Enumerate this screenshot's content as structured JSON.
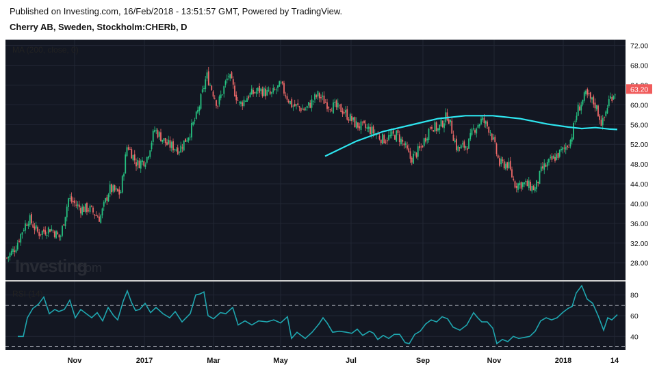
{
  "header": {
    "publish_line": "Published on Investing.com, 16/Feb/2018 - 13:51:57 GMT, Powered by TradingView.",
    "symbol_line": "Cherry AB, Sweden, Stockholm:CHERb, D"
  },
  "watermark": {
    "brand": "Investing",
    "suffix": ".com"
  },
  "colors": {
    "background": "#131722",
    "up_candle": "#26c281",
    "down_candle": "#f06a6a",
    "ma_line": "#2ee6f0",
    "rsi_line": "#1fa7b0",
    "last_price_badge": "#f05b5b"
  },
  "chart_data": {
    "type": "candlestick",
    "price_panel": {
      "indicator_label": "MA (200, close, 0)",
      "y_ticks": [
        "72.00",
        "68.00",
        "64.00",
        "60.00",
        "56.00",
        "52.00",
        "48.00",
        "44.00",
        "40.00",
        "36.00",
        "32.00",
        "28.00"
      ],
      "y_range": [
        24.5,
        73.2
      ],
      "last_price": "63.20",
      "last_price_value": 63.2,
      "candles_close_path": [
        [
          0,
          28
        ],
        [
          10,
          29
        ],
        [
          22,
          31
        ],
        [
          34,
          35
        ],
        [
          42,
          37
        ],
        [
          56,
          34
        ],
        [
          74,
          35
        ],
        [
          88,
          33
        ],
        [
          100,
          41
        ],
        [
          118,
          39
        ],
        [
          130,
          39
        ],
        [
          146,
          37
        ],
        [
          160,
          43
        ],
        [
          176,
          42
        ],
        [
          186,
          52
        ],
        [
          200,
          48
        ],
        [
          214,
          49
        ],
        [
          226,
          55
        ],
        [
          244,
          52
        ],
        [
          262,
          51
        ],
        [
          276,
          54
        ],
        [
          288,
          58
        ],
        [
          302,
          66
        ],
        [
          318,
          60
        ],
        [
          334,
          66
        ],
        [
          350,
          60
        ],
        [
          364,
          62
        ],
        [
          380,
          63
        ],
        [
          396,
          62
        ],
        [
          410,
          64
        ],
        [
          426,
          60
        ],
        [
          446,
          59
        ],
        [
          464,
          62
        ],
        [
          480,
          60
        ],
        [
          500,
          59
        ],
        [
          520,
          56
        ],
        [
          540,
          55
        ],
        [
          560,
          53
        ],
        [
          580,
          54
        ],
        [
          590,
          52
        ],
        [
          600,
          49
        ],
        [
          614,
          51
        ],
        [
          630,
          56
        ],
        [
          640,
          55
        ],
        [
          654,
          58
        ],
        [
          668,
          51
        ],
        [
          684,
          52
        ],
        [
          692,
          55
        ],
        [
          704,
          57
        ],
        [
          716,
          55
        ],
        [
          722,
          52
        ],
        [
          730,
          48
        ],
        [
          742,
          48
        ],
        [
          752,
          44
        ],
        [
          766,
          44
        ],
        [
          782,
          43
        ],
        [
          792,
          47
        ],
        [
          808,
          49
        ],
        [
          824,
          51
        ],
        [
          834,
          53
        ],
        [
          844,
          59
        ],
        [
          856,
          62
        ],
        [
          870,
          60
        ],
        [
          880,
          56
        ],
        [
          890,
          61
        ],
        [
          900,
          63
        ]
      ],
      "ma_200": [
        [
          475,
          49.6
        ],
        [
          520,
          52.6
        ],
        [
          560,
          54.6
        ],
        [
          600,
          55.9
        ],
        [
          640,
          57.2
        ],
        [
          680,
          57.8
        ],
        [
          720,
          57.8
        ],
        [
          760,
          57.2
        ],
        [
          800,
          56.1
        ],
        [
          830,
          55.5
        ],
        [
          850,
          55.2
        ],
        [
          870,
          55.4
        ],
        [
          890,
          55.1
        ],
        [
          902,
          55.0
        ]
      ]
    },
    "rsi_panel": {
      "indicator_label": "RSI (14)",
      "y_ticks": [
        "80",
        "60",
        "40"
      ],
      "y_range": [
        27,
        93
      ],
      "bands": [
        70,
        30
      ],
      "series_path": [
        [
          26,
          40
        ],
        [
          34,
          40
        ],
        [
          40,
          58
        ],
        [
          48,
          67
        ],
        [
          56,
          71
        ],
        [
          64,
          78
        ],
        [
          72,
          62
        ],
        [
          80,
          66
        ],
        [
          86,
          64
        ],
        [
          94,
          66
        ],
        [
          102,
          75
        ],
        [
          110,
          58
        ],
        [
          118,
          66
        ],
        [
          126,
          62
        ],
        [
          134,
          58
        ],
        [
          142,
          63
        ],
        [
          150,
          55
        ],
        [
          158,
          68
        ],
        [
          166,
          60
        ],
        [
          172,
          56
        ],
        [
          180,
          74
        ],
        [
          186,
          84
        ],
        [
          192,
          73
        ],
        [
          198,
          65
        ],
        [
          204,
          66
        ],
        [
          212,
          72
        ],
        [
          220,
          63
        ],
        [
          228,
          68
        ],
        [
          238,
          62
        ],
        [
          248,
          58
        ],
        [
          256,
          64
        ],
        [
          266,
          54
        ],
        [
          278,
          62
        ],
        [
          286,
          80
        ],
        [
          292,
          81
        ],
        [
          298,
          83
        ],
        [
          304,
          60
        ],
        [
          312,
          57
        ],
        [
          322,
          63
        ],
        [
          330,
          62
        ],
        [
          340,
          68
        ],
        [
          348,
          51
        ],
        [
          358,
          55
        ],
        [
          368,
          51
        ],
        [
          378,
          55
        ],
        [
          390,
          54
        ],
        [
          400,
          56
        ],
        [
          410,
          53
        ],
        [
          420,
          59
        ],
        [
          426,
          38
        ],
        [
          434,
          44
        ],
        [
          446,
          38
        ],
        [
          456,
          44
        ],
        [
          466,
          52
        ],
        [
          472,
          58
        ],
        [
          478,
          53
        ],
        [
          486,
          44
        ],
        [
          496,
          45
        ],
        [
          506,
          44
        ],
        [
          514,
          43
        ],
        [
          522,
          47
        ],
        [
          530,
          41
        ],
        [
          540,
          45
        ],
        [
          546,
          43
        ],
        [
          552,
          37
        ],
        [
          560,
          41
        ],
        [
          568,
          38
        ],
        [
          576,
          42
        ],
        [
          584,
          42
        ],
        [
          592,
          34
        ],
        [
          598,
          33
        ],
        [
          606,
          42
        ],
        [
          614,
          45
        ],
        [
          622,
          52
        ],
        [
          630,
          56
        ],
        [
          638,
          54
        ],
        [
          646,
          59
        ],
        [
          654,
          57
        ],
        [
          662,
          49
        ],
        [
          672,
          46
        ],
        [
          682,
          51
        ],
        [
          692,
          63
        ],
        [
          698,
          58
        ],
        [
          704,
          54
        ],
        [
          712,
          54
        ],
        [
          720,
          48
        ],
        [
          726,
          33
        ],
        [
          734,
          37
        ],
        [
          742,
          35
        ],
        [
          750,
          40
        ],
        [
          758,
          38
        ],
        [
          766,
          39
        ],
        [
          774,
          40
        ],
        [
          782,
          45
        ],
        [
          790,
          55
        ],
        [
          798,
          58
        ],
        [
          806,
          56
        ],
        [
          814,
          58
        ],
        [
          822,
          63
        ],
        [
          830,
          67
        ],
        [
          836,
          69
        ],
        [
          842,
          82
        ],
        [
          850,
          89
        ],
        [
          858,
          76
        ],
        [
          866,
          72
        ],
        [
          874,
          60
        ],
        [
          882,
          46
        ],
        [
          888,
          58
        ],
        [
          894,
          56
        ],
        [
          902,
          61
        ]
      ]
    },
    "x_ticks": [
      {
        "label": "Nov",
        "x": 109
      },
      {
        "label": "2017",
        "x": 211
      },
      {
        "label": "Mar",
        "x": 312
      },
      {
        "label": "May",
        "x": 410
      },
      {
        "label": "Jul",
        "x": 513
      },
      {
        "label": "Sep",
        "x": 618
      },
      {
        "label": "Nov",
        "x": 722
      },
      {
        "label": "2018",
        "x": 823
      },
      {
        "label": "14",
        "x": 898
      }
    ]
  }
}
